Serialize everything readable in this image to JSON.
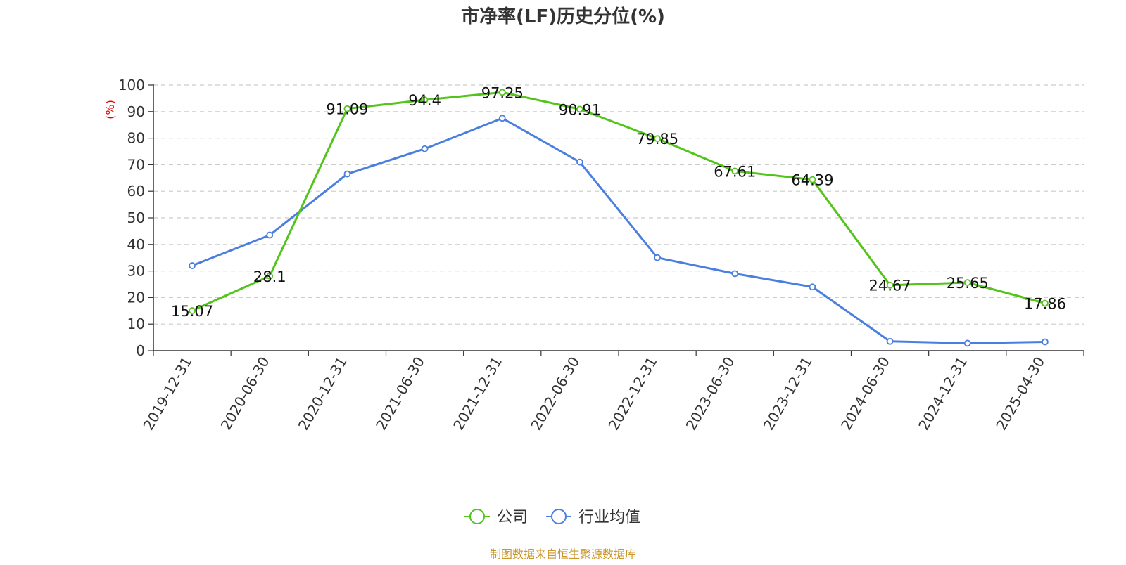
{
  "chart_data": {
    "type": "line",
    "title": "市净率(LF)历史分位(%)",
    "ylabel": "(%)",
    "xlabel": "",
    "categories": [
      "2019-12-31",
      "2020-06-30",
      "2020-12-31",
      "2021-06-30",
      "2021-12-31",
      "2022-06-30",
      "2022-12-31",
      "2023-06-30",
      "2023-12-31",
      "2024-06-30",
      "2024-12-31",
      "2025-04-30"
    ],
    "ylim": [
      0,
      100
    ],
    "yticks": [
      0,
      10,
      20,
      30,
      40,
      50,
      60,
      70,
      80,
      90,
      100
    ],
    "grid": "horizontal dashed",
    "legend_position": "bottom-center",
    "series": [
      {
        "name": "公司",
        "color": "#52c41a",
        "values": [
          15.07,
          28.1,
          91.09,
          94.4,
          97.25,
          90.91,
          79.85,
          67.61,
          64.39,
          24.67,
          25.65,
          17.86
        ],
        "data_labels": [
          "15.07",
          "28.1",
          "91.09",
          "94.4",
          "97.25",
          "90.91",
          "79.85",
          "67.61",
          "64.39",
          "24.67",
          "25.65",
          "17.86"
        ]
      },
      {
        "name": "行业均值",
        "color": "#4a7fe0",
        "values": [
          32,
          43.5,
          66.5,
          76,
          87.5,
          71,
          35,
          29,
          24,
          3.5,
          2.8,
          3.3
        ]
      }
    ],
    "source": "制图数据来自恒生聚源数据库"
  }
}
